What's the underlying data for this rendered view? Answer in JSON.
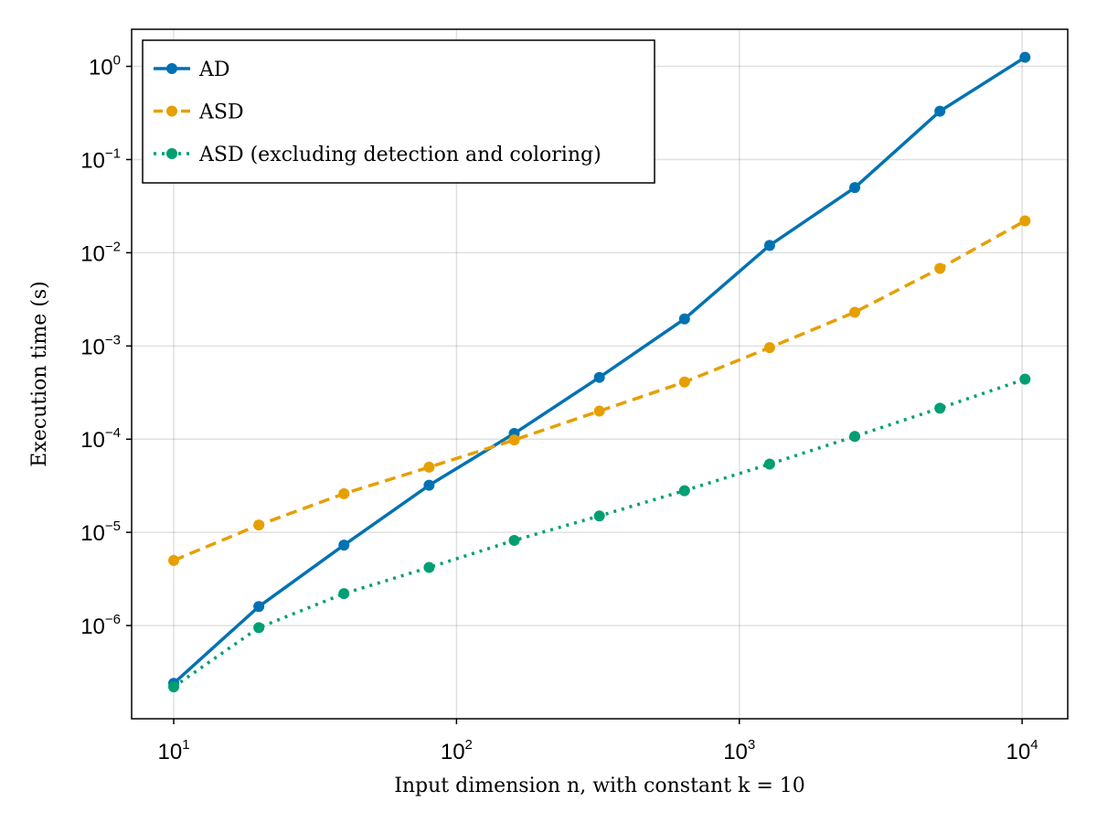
{
  "chart_data": {
    "type": "line",
    "title": "",
    "xlabel": "Input dimension n, with constant k = 10",
    "ylabel": "Execution time (s)",
    "xscale": "log",
    "yscale": "log",
    "xlim": [
      7.1,
      14500
    ],
    "ylim": [
      1e-07,
      2.5
    ],
    "grid": true,
    "legend_position": "top-left",
    "x_ticks": [
      {
        "value": 10,
        "base": "10",
        "exp": "1"
      },
      {
        "value": 100,
        "base": "10",
        "exp": "2"
      },
      {
        "value": 1000,
        "base": "10",
        "exp": "3"
      },
      {
        "value": 10000,
        "base": "10",
        "exp": "4"
      }
    ],
    "y_ticks": [
      {
        "value": 1e-06,
        "base": "10",
        "exp": "−6"
      },
      {
        "value": 1e-05,
        "base": "10",
        "exp": "−5"
      },
      {
        "value": 0.0001,
        "base": "10",
        "exp": "−4"
      },
      {
        "value": 0.001,
        "base": "10",
        "exp": "−3"
      },
      {
        "value": 0.01,
        "base": "10",
        "exp": "−2"
      },
      {
        "value": 0.1,
        "base": "10",
        "exp": "−1"
      },
      {
        "value": 1,
        "base": "10",
        "exp": "0"
      }
    ],
    "x": [
      10,
      20,
      40,
      80,
      160,
      320,
      640,
      1280,
      2560,
      5120,
      10240
    ],
    "series": [
      {
        "name": "AD",
        "color": "#0072b2",
        "dash": "solid",
        "values": [
          2.4e-07,
          1.6e-06,
          7.3e-06,
          3.2e-05,
          0.000115,
          0.00046,
          0.00195,
          0.012,
          0.05,
          0.33,
          1.25
        ]
      },
      {
        "name": "ASD",
        "color": "#e69f00",
        "dash": "dashed",
        "values": [
          5e-06,
          1.2e-05,
          2.6e-05,
          5e-05,
          9.8e-05,
          0.0002,
          0.00041,
          0.00096,
          0.0023,
          0.0068,
          0.022
        ]
      },
      {
        "name": "ASD (excluding detection and coloring)",
        "color": "#009e73",
        "dash": "dotted",
        "values": [
          2.2e-07,
          9.5e-07,
          2.2e-06,
          4.2e-06,
          8.2e-06,
          1.5e-05,
          2.8e-05,
          5.4e-05,
          0.000107,
          0.000215,
          0.00044
        ]
      }
    ]
  }
}
